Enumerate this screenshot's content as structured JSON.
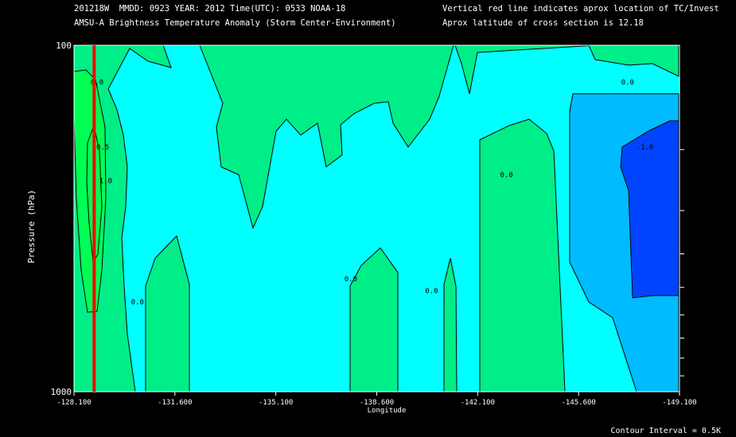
{
  "header": {
    "left_line1": "201218W  MMDD: 0923 YEAR: 2012 Time(UTC): 0533 NOAA-18",
    "left_line2": "AMSU-A Brightness Temperature Anomaly (Storm Center-Environment)",
    "right_line1": "Vertical red line indicates aprox location of TC/Invest",
    "right_line2": "Aprox latitude of cross section is 12.18"
  },
  "footer": {
    "contour_interval": "Contour Interval = 0.5K"
  },
  "colors": {
    "background": "#000000",
    "cyan": "#00ffff",
    "sea_green": "#00ee88",
    "green": "#00ff55",
    "sky_blue": "#00bbff",
    "blue": "#0044ff",
    "red_line": "#ff0000"
  },
  "chart_data": {
    "type": "contour",
    "xlabel": "Longitude",
    "ylabel": "Pressure (hPa)",
    "xlim": [
      -128.1,
      -149.1
    ],
    "ylim": [
      1000,
      100
    ],
    "x_ticks": [
      {
        "value": -128.1,
        "label": "-128.100"
      },
      {
        "value": -131.6,
        "label": "-131.600"
      },
      {
        "value": -135.1,
        "label": "-135.100"
      },
      {
        "value": -138.6,
        "label": "-138.600"
      },
      {
        "value": -142.1,
        "label": "-142.100"
      },
      {
        "value": -145.6,
        "label": "-145.600"
      },
      {
        "value": -149.1,
        "label": "-149.100"
      }
    ],
    "y_ticks": [
      {
        "value": 100,
        "label": "100"
      },
      {
        "value": 1000,
        "label": "1000"
      }
    ],
    "storm_longitude": -128.8,
    "contour_interval_K": 0.5,
    "contour_labels": [
      {
        "lon": -128.9,
        "p": 130,
        "text": "0.0"
      },
      {
        "lon": -129.1,
        "p": 200,
        "text": "0.5"
      },
      {
        "lon": -129.2,
        "p": 250,
        "text": "1.0"
      },
      {
        "lon": -130.3,
        "p": 560,
        "text": "0.0"
      },
      {
        "lon": -137.7,
        "p": 480,
        "text": "0.0"
      },
      {
        "lon": -140.5,
        "p": 520,
        "text": "0.0"
      },
      {
        "lon": -143.1,
        "p": 240,
        "text": "0.0"
      },
      {
        "lon": -147.3,
        "p": 130,
        "text": "0.0"
      },
      {
        "lon": -147.9,
        "p": 200,
        "text": "-1.0"
      }
    ]
  }
}
